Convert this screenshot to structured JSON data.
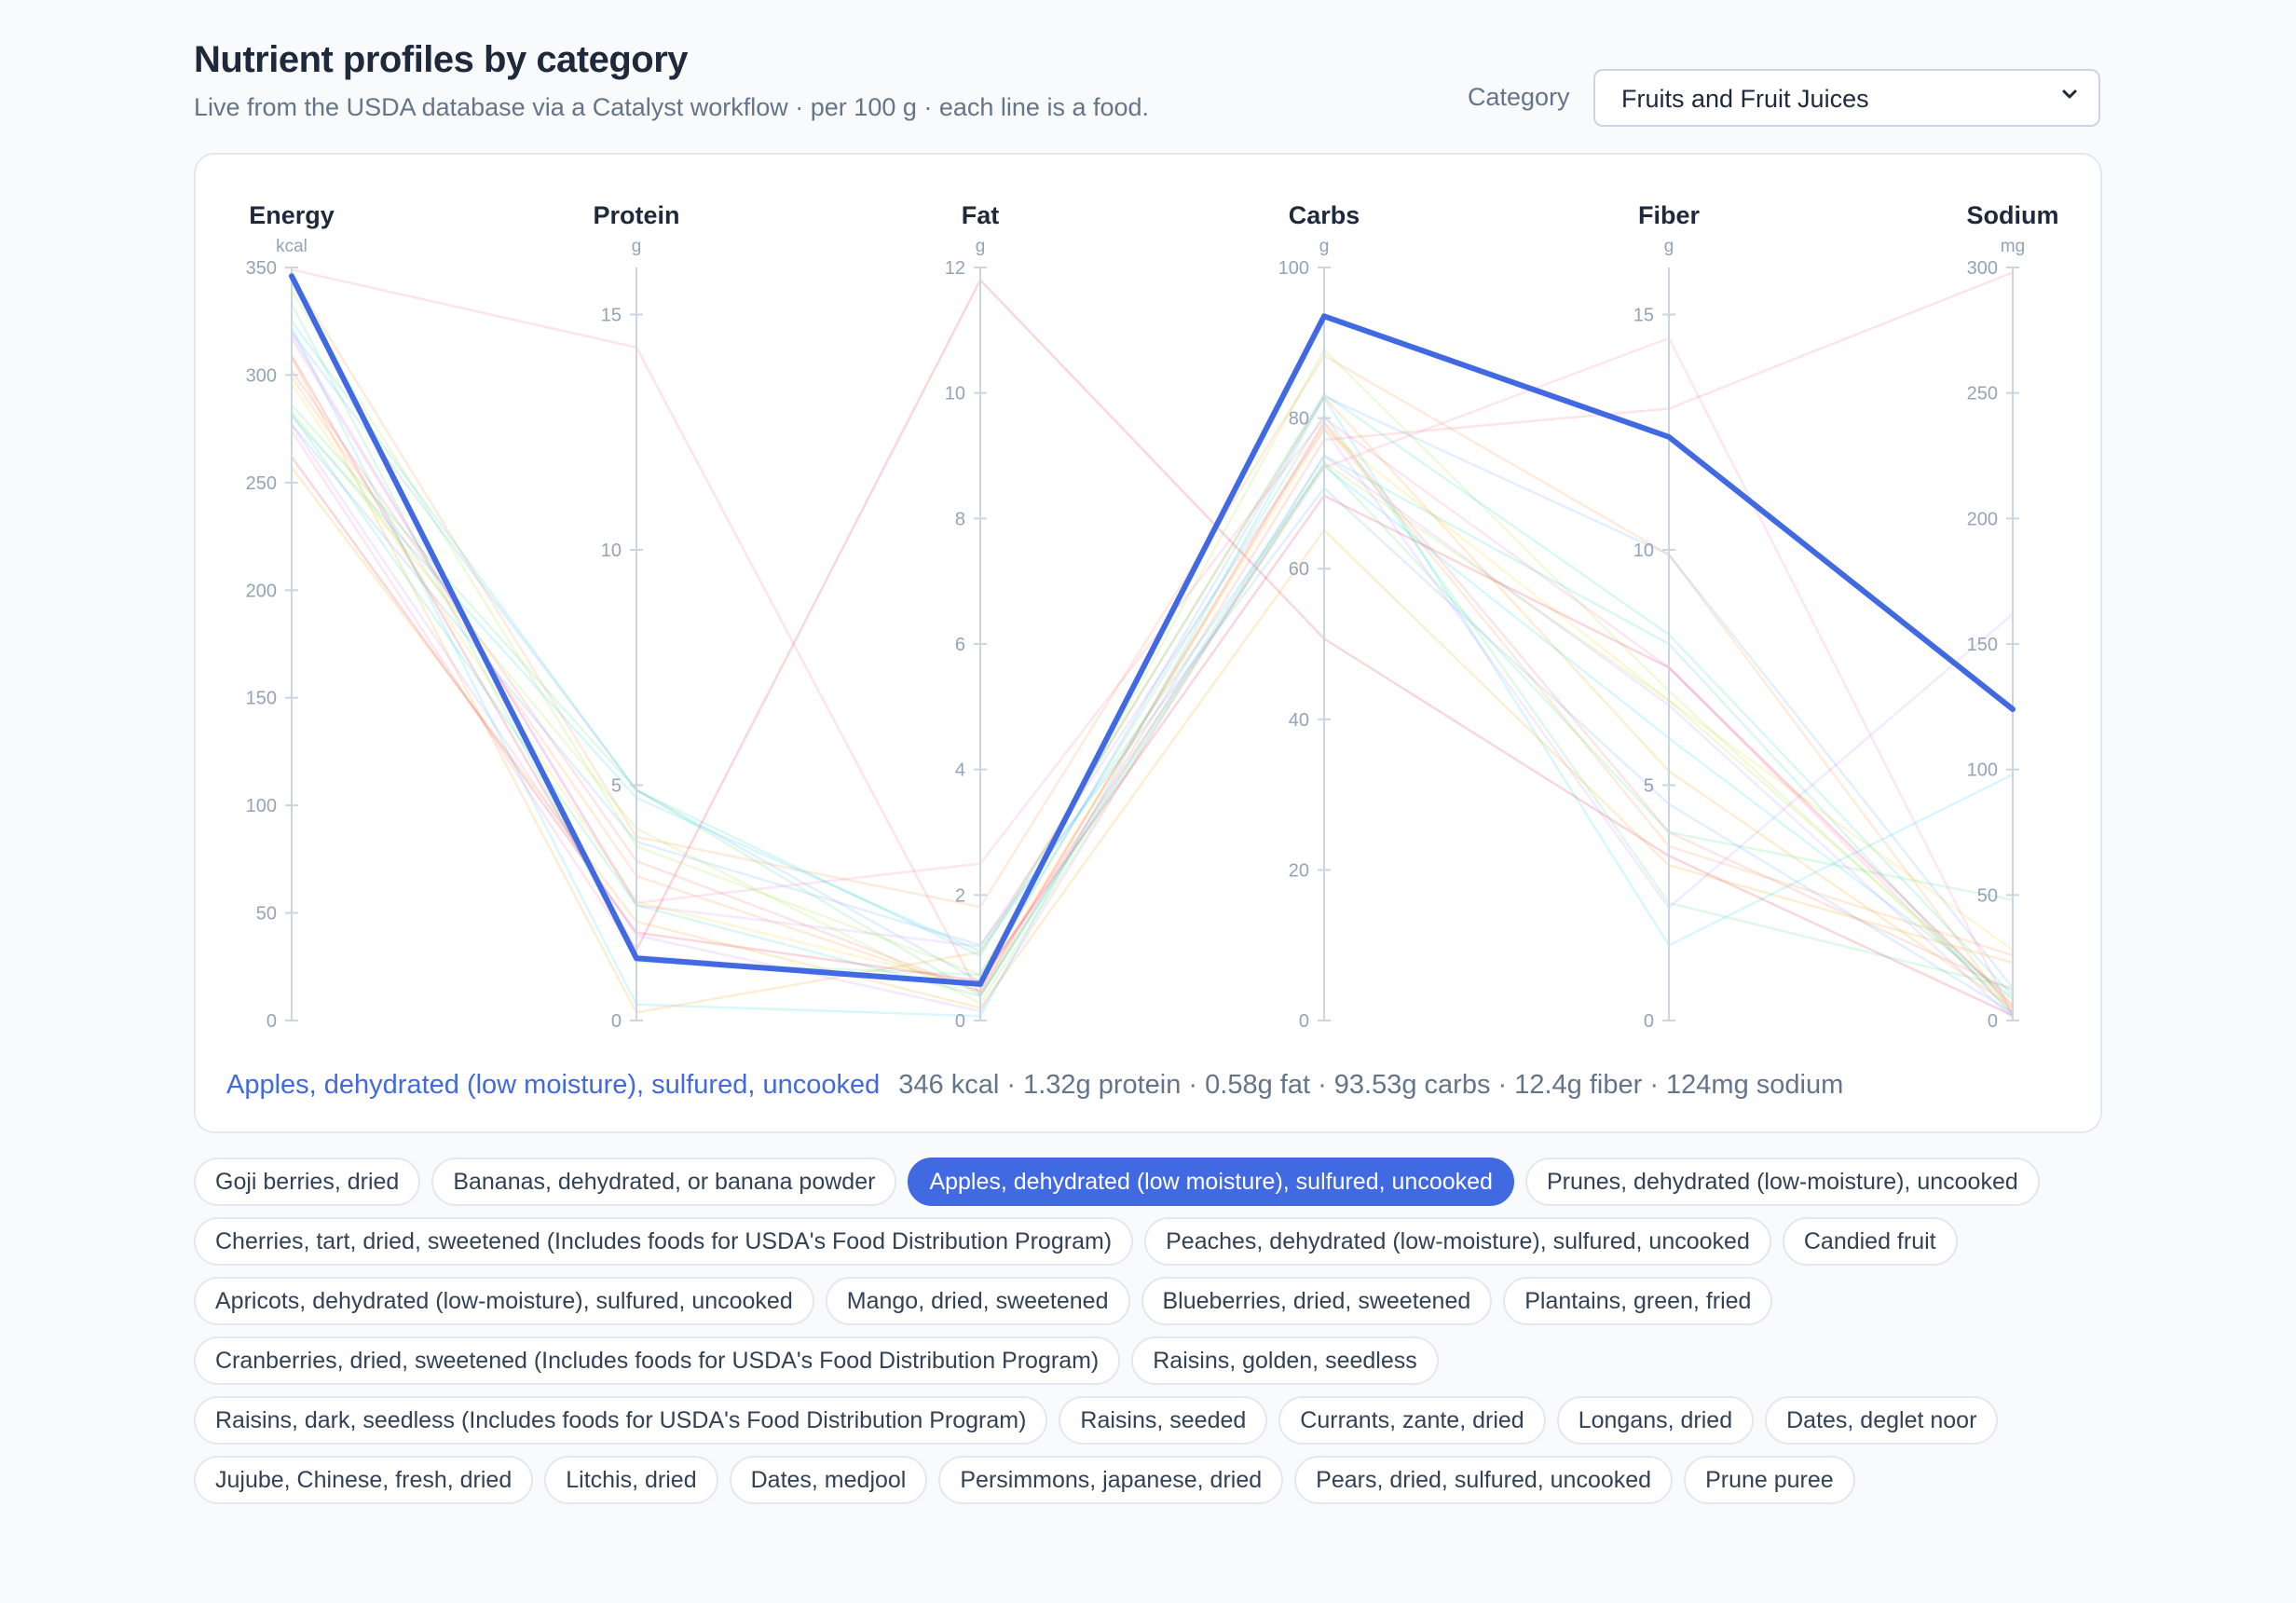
{
  "header": {
    "title": "Nutrient profiles by category",
    "subtitle": "Live from the USDA database via a Catalyst workflow · per 100 g · each line is a food."
  },
  "category": {
    "label": "Category",
    "selected": "Fruits and Fruit Juices"
  },
  "colors": {
    "accent": "#4169e1",
    "axis": "#cbd5e1",
    "background_lines": [
      "#f87171",
      "#fb923c",
      "#facc15",
      "#a3e635",
      "#4ade80",
      "#2dd4bf",
      "#22d3ee",
      "#60a5fa",
      "#c084fc",
      "#f472b6",
      "#e11d48",
      "#f59e0b"
    ]
  },
  "chart_data": {
    "type": "parallel-coordinates",
    "axes": [
      {
        "name": "Energy",
        "unit": "kcal",
        "range": [
          0,
          350
        ],
        "ticks": [
          0,
          50,
          100,
          150,
          200,
          250,
          300,
          350
        ]
      },
      {
        "name": "Protein",
        "unit": "g",
        "range": [
          0,
          16
        ],
        "ticks": [
          0,
          5,
          10,
          15
        ]
      },
      {
        "name": "Fat",
        "unit": "g",
        "range": [
          0,
          12
        ],
        "ticks": [
          0,
          2,
          4,
          6,
          8,
          10,
          12
        ]
      },
      {
        "name": "Carbs",
        "unit": "g",
        "range": [
          0,
          100
        ],
        "ticks": [
          0,
          20,
          40,
          60,
          80,
          100
        ]
      },
      {
        "name": "Fiber",
        "unit": "g",
        "range": [
          0,
          16
        ],
        "ticks": [
          0,
          5,
          10,
          15
        ]
      },
      {
        "name": "Sodium",
        "unit": "mg",
        "range": [
          0,
          300
        ],
        "ticks": [
          0,
          50,
          100,
          150,
          200,
          250,
          300
        ]
      }
    ],
    "foods": [
      {
        "name": "Goji berries, dried",
        "values": [
          349,
          14.3,
          0.39,
          77.1,
          13,
          298
        ]
      },
      {
        "name": "Bananas, dehydrated, or banana powder",
        "values": [
          346,
          3.9,
          1.81,
          88.3,
          9.9,
          3
        ]
      },
      {
        "name": "Apples, dehydrated (low moisture), sulfured, uncooked",
        "values": [
          346,
          1.32,
          0.58,
          93.53,
          12.4,
          124
        ]
      },
      {
        "name": "Prunes, dehydrated (low-moisture), uncooked",
        "values": [
          339,
          3.7,
          0.73,
          89.07,
          7,
          5
        ]
      },
      {
        "name": "Cherries, tart, dried, sweetened (Includes foods for USDA's Food Distribution Program)",
        "values": [
          333,
          1.25,
          0.73,
          80.5,
          2.5,
          13
        ]
      },
      {
        "name": "Peaches, dehydrated (low-moisture), sulfured, uncooked",
        "values": [
          325,
          4.89,
          1.03,
          83.18,
          8.2,
          10
        ]
      },
      {
        "name": "Candied fruit",
        "values": [
          322,
          0.34,
          0.07,
          82.74,
          1.6,
          98
        ]
      },
      {
        "name": "Apricots, dehydrated (low-moisture), sulfured, uncooked",
        "values": [
          320,
          4.9,
          0.62,
          82.89,
          9.9,
          13
        ]
      },
      {
        "name": "Mango, dried, sweetened",
        "values": [
          319,
          2.45,
          1.18,
          78.58,
          2.4,
          162
        ]
      },
      {
        "name": "Blueberries, dried, sweetened",
        "values": [
          317,
          2.5,
          2.5,
          80,
          7.5,
          3
        ]
      },
      {
        "name": "Plantains, green, fried",
        "values": [
          309,
          1.5,
          11.8,
          50.7,
          3.5,
          2
        ]
      },
      {
        "name": "Cranberries, dried, sweetened (Includes foods for USDA's Food Distribution Program)",
        "values": [
          308,
          0.17,
          1.09,
          82.8,
          5.3,
          5
        ]
      },
      {
        "name": "Raisins, golden, seedless",
        "values": [
          302,
          3.39,
          0.46,
          79.52,
          4,
          12
        ]
      },
      {
        "name": "Raisins, dark, seedless (Includes foods for USDA's Food Distribution Program)",
        "values": [
          299,
          3.07,
          0.46,
          79.18,
          3.7,
          26
        ]
      },
      {
        "name": "Raisins, seeded",
        "values": [
          296,
          2.52,
          0.54,
          78.47,
          6.8,
          28
        ]
      },
      {
        "name": "Currants, zante, dried",
        "values": [
          283,
          4.08,
          0.27,
          74.08,
          6.8,
          8
        ]
      },
      {
        "name": "Longans, dried",
        "values": [
          286,
          4.9,
          0.4,
          74,
          4,
          48
        ]
      },
      {
        "name": "Dates, deglet noor",
        "values": [
          282,
          2.45,
          0.39,
          75.03,
          8,
          2
        ]
      },
      {
        "name": "Jujube, Chinese, fresh, dried",
        "values": [
          281,
          4.73,
          1.1,
          73.6,
          6,
          9
        ]
      },
      {
        "name": "Litchis, dried",
        "values": [
          277,
          3.8,
          1.2,
          70.7,
          4.6,
          3
        ]
      },
      {
        "name": "Dates, medjool",
        "values": [
          277,
          1.81,
          0.15,
          74.97,
          6.7,
          1
        ]
      },
      {
        "name": "Persimmons, japanese, dried",
        "values": [
          274,
          1.38,
          0.59,
          73.43,
          14.5,
          2
        ]
      },
      {
        "name": "Pears, dried, sulfured, uncooked",
        "values": [
          262,
          1.87,
          0.63,
          69.7,
          7.5,
          6
        ]
      },
      {
        "name": "Prune puree",
        "values": [
          257,
          2.1,
          0.2,
          65.1,
          3.3,
          23
        ]
      }
    ],
    "selected_index": 2,
    "selected_summary": "346 kcal · 1.32g protein · 0.58g fat · 93.53g carbs · 12.4g fiber · 124mg sodium"
  }
}
